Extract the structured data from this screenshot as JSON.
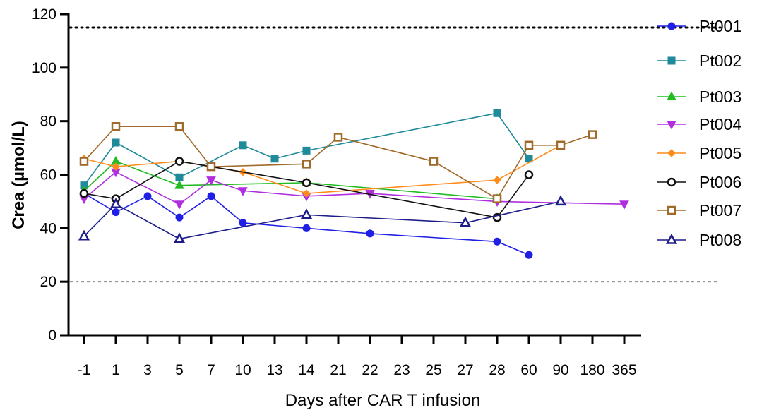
{
  "chart_data": {
    "type": "line",
    "title": "",
    "xlabel": "Days after CAR T infusion",
    "ylabel": "Crea (µmol/L)",
    "categories": [
      "-1",
      "1",
      "3",
      "5",
      "7",
      "10",
      "13",
      "14",
      "21",
      "22",
      "23",
      "25",
      "27",
      "28",
      "60",
      "90",
      "180",
      "365"
    ],
    "ylim": [
      0,
      120
    ],
    "yticks": [
      "0",
      "20",
      "40",
      "60",
      "80",
      "100",
      "120"
    ],
    "grid": false,
    "legend_position": "right",
    "reference_lines": [
      {
        "y": 115,
        "style": "dotted",
        "color": "#000000"
      },
      {
        "y": 20,
        "style": "dashed",
        "color": "#888888"
      }
    ],
    "series": [
      {
        "name": "Pt001",
        "color": "#1f1fe6",
        "marker": "circle-filled",
        "x": [
          "-1",
          "1",
          "3",
          "5",
          "7",
          "10",
          "14",
          "22",
          "28",
          "60"
        ],
        "y": [
          53,
          46,
          52,
          44,
          52,
          42,
          40,
          38,
          35,
          30
        ]
      },
      {
        "name": "Pt002",
        "color": "#1f8a9a",
        "marker": "square-filled",
        "x": [
          "-1",
          "1",
          "5",
          "10",
          "13",
          "14",
          "28",
          "60"
        ],
        "y": [
          56,
          72,
          59,
          71,
          66,
          69,
          83,
          66
        ]
      },
      {
        "name": "Pt003",
        "color": "#22bb22",
        "marker": "triangle-up-filled",
        "x": [
          "-1",
          "1",
          "5",
          "14",
          "28"
        ],
        "y": [
          54,
          65,
          56,
          57,
          51
        ]
      },
      {
        "name": "Pt004",
        "color": "#b02ee0",
        "marker": "triangle-down-filled",
        "x": [
          "-1",
          "1",
          "5",
          "7",
          "10",
          "14",
          "22",
          "28",
          "365"
        ],
        "y": [
          51,
          61,
          49,
          58,
          54,
          52,
          53,
          50,
          49
        ]
      },
      {
        "name": "Pt005",
        "color": "#ff8c1a",
        "marker": "diamond-filled",
        "x": [
          "-1",
          "1",
          "5",
          "10",
          "14",
          "28",
          "90"
        ],
        "y": [
          66,
          63,
          65,
          61,
          53,
          58,
          71
        ]
      },
      {
        "name": "Pt006",
        "color": "#111111",
        "marker": "circle-open",
        "x": [
          "-1",
          "1",
          "5",
          "14",
          "28",
          "60"
        ],
        "y": [
          53,
          51,
          65,
          57,
          44,
          60
        ]
      },
      {
        "name": "Pt007",
        "color": "#a06a2a",
        "marker": "square-open",
        "x": [
          "-1",
          "1",
          "5",
          "7",
          "14",
          "21",
          "25",
          "28",
          "60",
          "90",
          "180"
        ],
        "y": [
          65,
          78,
          78,
          63,
          64,
          74,
          65,
          51,
          71,
          71,
          75
        ]
      },
      {
        "name": "Pt008",
        "color": "#1c1c8a",
        "marker": "triangle-up-open",
        "x": [
          "-1",
          "1",
          "5",
          "14",
          "27",
          "90"
        ],
        "y": [
          37,
          49,
          36,
          45,
          42,
          50
        ]
      }
    ]
  }
}
